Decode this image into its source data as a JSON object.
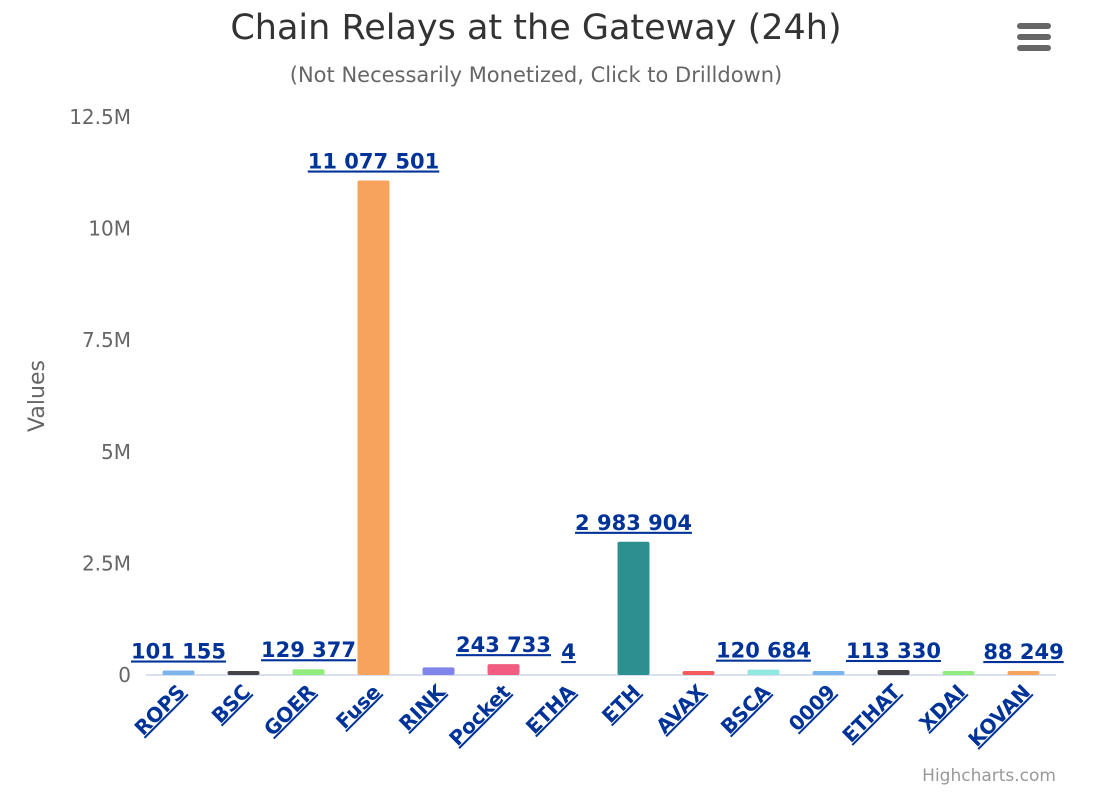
{
  "chart_data": {
    "type": "bar",
    "title": "Chain Relays at the Gateway (24h)",
    "subtitle": "(Not Necessarily Monetized, Click to Drilldown)",
    "ylabel": "Values",
    "ylim": [
      0,
      12500000
    ],
    "yticks": [
      0,
      2500000,
      5000000,
      7500000,
      10000000,
      12500000
    ],
    "ytick_labels": [
      "0",
      "2.5M",
      "5M",
      "7.5M",
      "10M",
      "12.5M"
    ],
    "grid": false,
    "categories": [
      "ROPS",
      "BSC",
      "GOER",
      "Fuse",
      "RINK",
      "Pocket",
      "ETHA",
      "ETH",
      "AVAX",
      "BSCA",
      "0009",
      "ETHAT",
      "XDAI",
      "KOVAN"
    ],
    "values": [
      101155,
      80000,
      129377,
      11077501,
      170000,
      243733,
      4,
      2983904,
      60000,
      120684,
      70000,
      113330,
      50000,
      88249
    ],
    "data_labels": [
      "101 155",
      "",
      "129 377",
      "11 077 501",
      "",
      "243 733",
      "4",
      "2 983 904",
      "",
      "120 684",
      "",
      "113 330",
      "",
      "88 249"
    ],
    "colors": [
      "#7cb5ec",
      "#434348",
      "#90ed7d",
      "#f7a35c",
      "#8085e9",
      "#f15c80",
      "#e4d354",
      "#2b908f",
      "#f45b5b",
      "#91e8e1",
      "#7cb5ec",
      "#434348",
      "#90ed7d",
      "#f7a35c"
    ]
  },
  "credits": "Highcharts.com"
}
